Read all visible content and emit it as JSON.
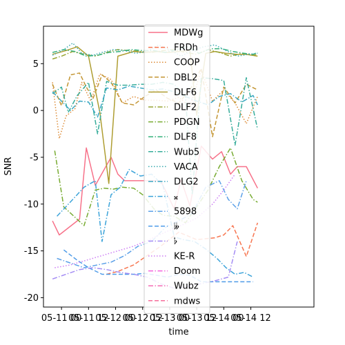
{
  "chart_data": {
    "type": "line",
    "xlabel": "time",
    "ylabel": "SNR",
    "xlim": [
      0,
      12
    ],
    "ylim": [
      -21,
      9
    ],
    "y_ticks": [
      -20,
      -15,
      -10,
      -5,
      0,
      5
    ],
    "x_ticks": [
      {
        "value": 0.8,
        "label": "05-11 00"
      },
      {
        "value": 2.0,
        "label": "05-11 12"
      },
      {
        "value": 3.2,
        "label": "05-12 00"
      },
      {
        "value": 4.4,
        "label": "05-12 12"
      },
      {
        "value": 5.6,
        "label": "05-13 00"
      },
      {
        "value": 6.8,
        "label": "05-13 12"
      },
      {
        "value": 8.0,
        "label": "05-14 00"
      },
      {
        "value": 9.2,
        "label": "05-14 12"
      }
    ],
    "grid": false,
    "legend_position": "top-center",
    "series": [
      {
        "name": "MDWg",
        "color": "#f77189",
        "dash": "solid",
        "x": [
          0.4,
          0.7,
          1.6,
          1.9,
          2.3,
          3.0,
          3.3,
          3.6,
          4.0,
          4.6,
          5.2,
          5.8,
          6.1,
          6.5,
          7.0,
          7.5,
          7.9,
          8.3,
          8.6,
          9.0,
          9.5
        ],
        "y": [
          -11.8,
          -13.3,
          -11.6,
          -4.0,
          -8.0,
          -5.0,
          -6.8,
          -7.5,
          -7.5,
          -7.5,
          -7.5,
          -10.5,
          -7.4,
          -10.2,
          -3.8,
          -5.2,
          -4.4,
          -6.8,
          -6.0,
          -6.0,
          -8.3
        ]
      },
      {
        "name": "FRDh",
        "color": "#f7754f",
        "dash": "dashed",
        "x": [
          2.8,
          3.3,
          4.0,
          5.2,
          6.0,
          6.8,
          7.6,
          8.0,
          8.4,
          9.0,
          9.5
        ],
        "y": [
          -17.5,
          -17.2,
          -16.5,
          -14.5,
          -13.0,
          -13.8,
          -13.6,
          -13.3,
          -12.3,
          -15.6,
          -12.0
        ]
      },
      {
        "name": "COOP",
        "color": "#dc8932",
        "dash": "dotted",
        "x": [
          0.4,
          0.7,
          1.0,
          1.4,
          1.7,
          2.1,
          2.5,
          3.0,
          3.5,
          4.0,
          4.5,
          5.0,
          5.5,
          6.0,
          6.5,
          7.0,
          7.5,
          8.0,
          8.5,
          9.0,
          9.5
        ],
        "y": [
          3.0,
          -3.0,
          -0.6,
          0.2,
          3.0,
          1.0,
          3.9,
          3.3,
          0.8,
          1.5,
          1.1,
          1.1,
          1.0,
          1.4,
          0.4,
          4.3,
          1.0,
          2.2,
          0.8,
          -1.4,
          1.5
        ]
      },
      {
        "name": "DBL2",
        "color": "#c39532",
        "dash": "dashed",
        "x": [
          0.4,
          0.8,
          1.2,
          1.6,
          1.9,
          2.2,
          2.6,
          3.0,
          3.5,
          4.0,
          4.5,
          5.0,
          5.5,
          6.0,
          6.5,
          7.0,
          7.5,
          8.0,
          8.5,
          9.0,
          9.5
        ],
        "y": [
          2.8,
          0.5,
          3.8,
          4.0,
          2.5,
          1.3,
          3.8,
          3.0,
          0.8,
          0.6,
          1.5,
          2.2,
          1.3,
          0.8,
          2.2,
          4.5,
          -2.8,
          2.5,
          0.8,
          2.8,
          2.2
        ]
      },
      {
        "name": "DLF6",
        "color": "#ae9d31",
        "dash": "solid",
        "x": [
          0.4,
          1.0,
          1.5,
          2.0,
          2.5,
          2.9,
          3.3,
          4.0,
          4.5,
          5.0,
          5.5,
          6.0,
          6.5,
          6.8,
          7.2,
          7.6,
          8.1,
          8.6,
          9.0,
          9.5
        ],
        "y": [
          6.0,
          6.4,
          6.8,
          5.8,
          -0.2,
          -7.8,
          5.8,
          6.3,
          6.2,
          6.3,
          6.2,
          6.3,
          6.4,
          -0.5,
          6.1,
          6.3,
          6.1,
          6.0,
          6.0,
          5.8
        ]
      },
      {
        "name": "DLF2",
        "color": "#97a431",
        "dash": "dashdot",
        "x": [
          0.4,
          0.8,
          1.3,
          1.8,
          2.3,
          2.8,
          3.3,
          3.8,
          4.3,
          4.8,
          5.3,
          5.8,
          6.3,
          6.8,
          7.3,
          7.8,
          8.3,
          8.8,
          9.3,
          9.5
        ],
        "y": [
          5.5,
          5.8,
          6.3,
          6.0,
          5.8,
          6.2,
          6.5,
          6.4,
          6.3,
          6.2,
          6.4,
          6.5,
          6.2,
          6.0,
          6.5,
          6.2,
          5.8,
          6.1,
          5.9,
          6.0
        ]
      },
      {
        "name": "PDGN",
        "color": "#77ab31",
        "dash": "dashdot",
        "x": [
          0.5,
          0.9,
          1.8,
          2.3,
          2.7,
          3.1,
          3.5,
          4.0,
          4.4,
          4.9,
          5.3,
          5.8,
          6.3,
          6.8,
          7.3,
          7.8,
          8.3,
          8.8,
          9.3,
          9.5
        ],
        "y": [
          -4.3,
          -10.3,
          -12.3,
          -8.5,
          -8.3,
          -8.4,
          -8.2,
          -8.3,
          -9.0,
          -10.5,
          -11.2,
          -11.3,
          -12.0,
          -10.3,
          -8.5,
          -6.0,
          -4.0,
          -7.5,
          -9.5,
          -9.8
        ]
      },
      {
        "name": "DLF8",
        "color": "#33b07a",
        "dash": "dashdot",
        "x": [
          0.4,
          0.9,
          1.4,
          1.9,
          2.4,
          2.9,
          3.4,
          3.9,
          4.4,
          4.9,
          5.4,
          5.9,
          6.4,
          6.9,
          7.4,
          7.9,
          8.4,
          8.9,
          9.3,
          9.5
        ],
        "y": [
          6.2,
          6.5,
          6.3,
          5.8,
          5.9,
          6.2,
          6.3,
          6.5,
          6.4,
          6.4,
          6.2,
          6.5,
          6.8,
          6.1,
          6.6,
          6.6,
          6.3,
          6.1,
          6.0,
          6.2
        ]
      },
      {
        "name": "Wub5",
        "color": "#35ac9a",
        "dash": "dashdot",
        "x": [
          0.4,
          0.8,
          1.1,
          1.5,
          2.0,
          2.4,
          2.8,
          3.3,
          3.8,
          4.3,
          4.8,
          5.3,
          5.8,
          6.3,
          6.6,
          7.0,
          7.5,
          8.0,
          8.5,
          9.0,
          9.5
        ],
        "y": [
          1.8,
          2.5,
          -0.2,
          1.6,
          3.0,
          -2.5,
          3.1,
          2.7,
          2.7,
          2.8,
          2.8,
          3.0,
          2.8,
          1.5,
          -9.0,
          3.5,
          3.4,
          3.2,
          -3.7,
          3.5,
          -2.0
        ]
      },
      {
        "name": "VACA",
        "color": "#36a9ae",
        "dash": "dotted",
        "x": [
          0.4,
          0.9,
          1.3,
          1.7,
          2.2,
          2.6,
          3.1,
          3.6,
          4.1,
          4.6,
          5.1,
          5.6,
          6.1,
          6.6,
          7.1,
          7.6,
          8.1,
          8.6,
          9.1,
          9.5
        ],
        "y": [
          5.9,
          6.5,
          7.2,
          6.1,
          5.9,
          6.2,
          6.5,
          6.4,
          6.1,
          6.3,
          7.0,
          6.5,
          5.8,
          6.4,
          6.8,
          7.0,
          6.4,
          5.8,
          6.0,
          6.1
        ]
      },
      {
        "name": "DLG2",
        "color": "#38a6c2",
        "dash": "dashdot",
        "x": [
          0.4,
          0.8,
          1.2,
          1.6,
          2.0,
          2.4,
          2.8,
          3.3,
          3.8,
          4.3,
          4.8,
          5.3,
          5.8,
          6.3,
          6.8,
          7.3,
          7.8,
          8.3,
          8.8,
          9.3,
          9.5
        ],
        "y": [
          2.0,
          1.0,
          0.0,
          1.0,
          0.9,
          -0.7,
          2.4,
          2.2,
          2.6,
          2.4,
          2.2,
          2.3,
          2.0,
          1.5,
          1.0,
          0.6,
          1.5,
          1.8,
          0.9,
          1.6,
          0.6
        ]
      },
      {
        "name": "𝄪",
        "color": "#3ba3d9",
        "dash": "dashdot",
        "x": [
          0.6,
          1.3,
          1.8,
          2.3,
          2.6,
          3.0,
          3.4,
          3.8,
          4.3,
          4.8,
          5.3,
          5.8,
          6.2,
          6.7,
          7.2,
          7.7,
          8.1,
          8.5,
          8.9,
          9.3
        ],
        "y": [
          -11.3,
          -9.5,
          -8.2,
          -7.5,
          -14.0,
          -9.0,
          -8.2,
          -6.3,
          -7.0,
          -6.8,
          -8.0,
          -13.5,
          -13.8,
          -14.0,
          -14.8,
          -15.8,
          -16.8,
          -17.5,
          -17.3,
          -17.8
        ]
      },
      {
        "name": "5898",
        "color": "#5ba0e8",
        "dash": "dashdot",
        "x": [
          0.6,
          1.2,
          1.8,
          2.4,
          3.0,
          3.6,
          4.2,
          4.8,
          5.4,
          6.0,
          6.6,
          7.2,
          7.8,
          8.2,
          8.6,
          9.0
        ],
        "y": [
          -15.8,
          -16.3,
          -16.8,
          -16.5,
          -16.2,
          -15.5,
          -14.5,
          -14.0,
          -12.5,
          -11.8,
          -11.0,
          -8.2,
          -7.5,
          -9.5,
          -10.5,
          -7.5
        ]
      },
      {
        "name": "𝄫",
        "color": "#4e9be8",
        "dash": "dashed",
        "x": [
          0.9,
          1.5,
          2.0,
          2.6,
          3.0,
          3.5,
          4.0,
          4.5,
          5.0,
          5.5,
          6.0,
          6.5,
          7.0,
          7.5,
          8.0,
          8.5,
          9.0,
          9.3
        ],
        "y": [
          -14.9,
          -16.0,
          -16.8,
          -17.5,
          -17.5,
          -17.5,
          -17.5,
          -17.4,
          -17.6,
          -17.8,
          -17.5,
          -17.6,
          -18.3,
          -18.3,
          -18.3,
          -18.3,
          -18.3,
          -18.3
        ]
      },
      {
        "name": "𝄬",
        "color": "#a48cf4",
        "dash": "dashdot",
        "x": [
          0.4,
          1.0,
          1.6,
          2.2,
          2.8,
          3.4,
          4.0,
          4.6,
          5.2,
          5.8,
          6.4,
          7.0,
          7.6,
          8.2,
          8.6
        ],
        "y": [
          -18.0,
          -17.5,
          -17.0,
          -16.8,
          -17.0,
          -17.3,
          -17.5,
          -17.8,
          -18.5,
          -19.0,
          -18.8,
          -18.5,
          -18.2,
          -17.8,
          -14.0
        ]
      },
      {
        "name": "KE-R",
        "color": "#cc7af4",
        "dash": "dotted",
        "x": [
          0.5,
          1.2,
          1.9,
          2.6,
          3.3,
          4.0,
          4.7,
          5.4,
          6.1,
          6.8,
          7.5,
          8.0,
          8.5
        ],
        "y": [
          -16.8,
          -16.5,
          -16.0,
          -15.5,
          -15.0,
          -14.5,
          -13.8,
          -13.0,
          -12.3,
          -11.5,
          -10.0,
          -8.5,
          -6.8
        ]
      },
      {
        "name": "Doom",
        "color": "#f461dd",
        "dash": "dashdot",
        "x": [],
        "y": []
      },
      {
        "name": "Wubz",
        "color": "#f56ab4",
        "dash": "dashdot",
        "x": [],
        "y": []
      },
      {
        "name": "mdws",
        "color": "#f66c9a",
        "dash": "dashed",
        "x": [],
        "y": []
      }
    ]
  }
}
